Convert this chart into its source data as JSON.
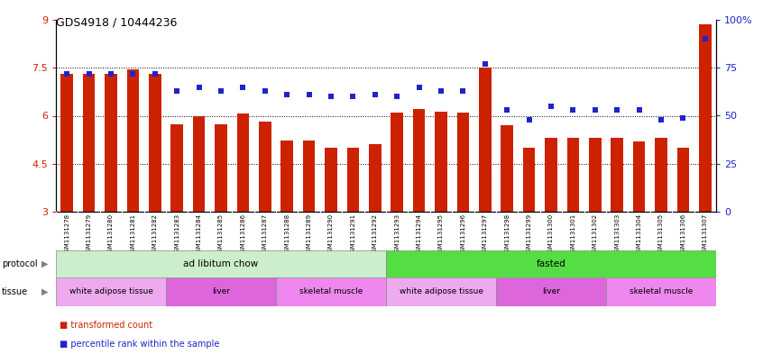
{
  "title": "GDS4918 / 10444236",
  "samples": [
    "GSM1131278",
    "GSM1131279",
    "GSM1131280",
    "GSM1131281",
    "GSM1131282",
    "GSM1131283",
    "GSM1131284",
    "GSM1131285",
    "GSM1131286",
    "GSM1131287",
    "GSM1131288",
    "GSM1131289",
    "GSM1131290",
    "GSM1131291",
    "GSM1131292",
    "GSM1131293",
    "GSM1131294",
    "GSM1131295",
    "GSM1131296",
    "GSM1131297",
    "GSM1131298",
    "GSM1131299",
    "GSM1131300",
    "GSM1131301",
    "GSM1131302",
    "GSM1131303",
    "GSM1131304",
    "GSM1131305",
    "GSM1131306",
    "GSM1131307"
  ],
  "bar_values": [
    7.3,
    7.32,
    7.3,
    7.46,
    7.32,
    5.72,
    6.0,
    5.72,
    6.08,
    5.82,
    5.22,
    5.22,
    5.0,
    5.0,
    5.1,
    6.1,
    6.22,
    6.12,
    6.1,
    7.5,
    5.7,
    5.0,
    5.3,
    5.3,
    5.3,
    5.3,
    5.2,
    5.3,
    5.0,
    8.85
  ],
  "dot_values": [
    72,
    72,
    72,
    72,
    72,
    63,
    65,
    63,
    65,
    63,
    61,
    61,
    60,
    60,
    61,
    60,
    65,
    63,
    63,
    77,
    53,
    48,
    55,
    53,
    53,
    53,
    53,
    48,
    49,
    90
  ],
  "ylim_left": [
    3,
    9
  ],
  "ylim_right": [
    0,
    100
  ],
  "yticks_left": [
    3,
    4.5,
    6,
    7.5,
    9
  ],
  "ytick_labels_left": [
    "3",
    "4.5",
    "6",
    "7.5",
    "9"
  ],
  "yticks_right": [
    0,
    25,
    50,
    75,
    100
  ],
  "ytick_labels_right": [
    "0",
    "25",
    "50",
    "75",
    "100%"
  ],
  "bar_color": "#cc2200",
  "dot_color": "#2222cc",
  "protocol_groups": [
    {
      "label": "ad libitum chow",
      "start": 0,
      "end": 14,
      "color": "#cceecc"
    },
    {
      "label": "fasted",
      "start": 15,
      "end": 29,
      "color": "#55dd44"
    }
  ],
  "tissue_groups": [
    {
      "label": "white adipose tissue",
      "start": 0,
      "end": 4,
      "color": "#eeaaee"
    },
    {
      "label": "liver",
      "start": 5,
      "end": 9,
      "color": "#dd66dd"
    },
    {
      "label": "skeletal muscle",
      "start": 10,
      "end": 14,
      "color": "#ee88ee"
    },
    {
      "label": "white adipose tissue",
      "start": 15,
      "end": 19,
      "color": "#eeaaee"
    },
    {
      "label": "liver",
      "start": 20,
      "end": 24,
      "color": "#dd66dd"
    },
    {
      "label": "skeletal muscle",
      "start": 25,
      "end": 29,
      "color": "#ee88ee"
    }
  ],
  "legend_items": [
    {
      "label": "transformed count",
      "color": "#cc2200"
    },
    {
      "label": "percentile rank within the sample",
      "color": "#2222cc"
    }
  ],
  "dotted_lines": [
    4.5,
    6.0,
    7.5
  ],
  "bar_width": 0.55
}
